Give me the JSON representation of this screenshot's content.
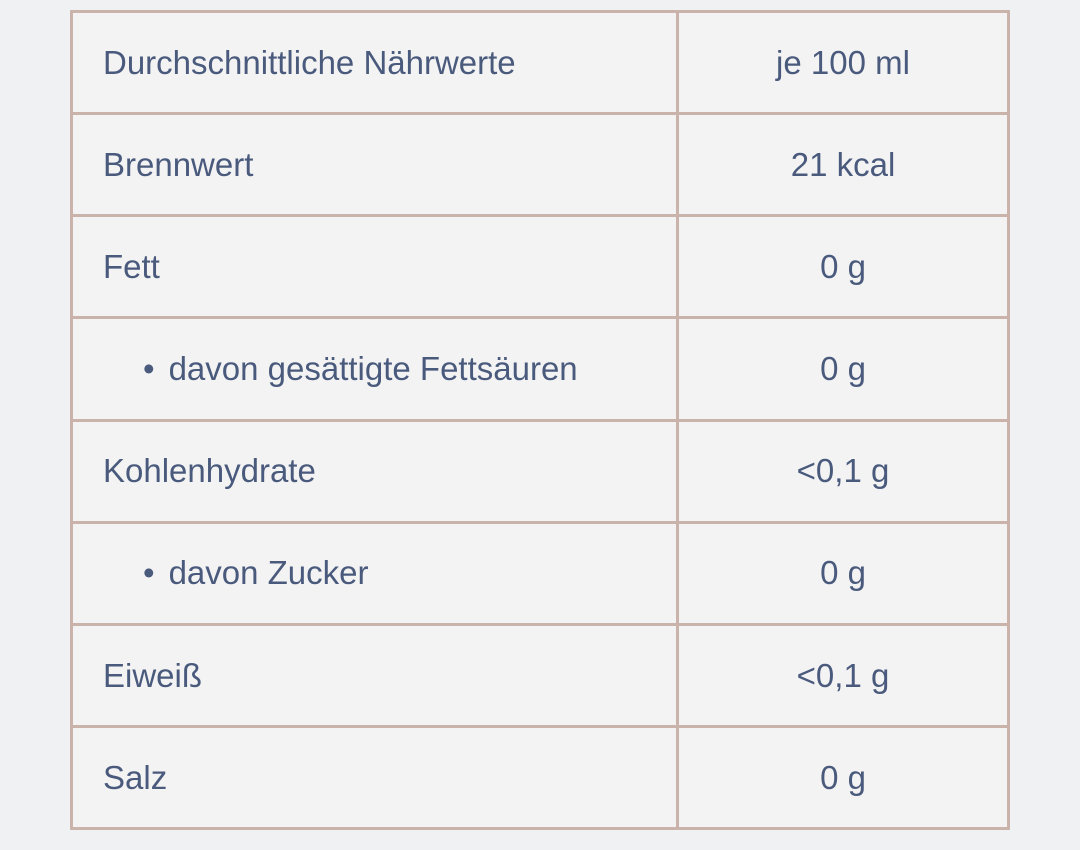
{
  "page": {
    "background_color": "#f0f1f2"
  },
  "table": {
    "border_color": "#c9b3aa",
    "cell_background_color": "#f3f3f4",
    "text_color": "#4a5a7c",
    "bullet_glyph": "•",
    "rows": [
      {
        "label": "Durchschnittliche Nährwerte",
        "value": "je 100 ml",
        "indented": false
      },
      {
        "label": "Brennwert",
        "value": "21 kcal",
        "indented": false
      },
      {
        "label": "Fett",
        "value": "0 g",
        "indented": false
      },
      {
        "label": "davon gesättigte Fettsäuren",
        "value": "0 g",
        "indented": true
      },
      {
        "label": "Kohlenhydrate",
        "value": "<0,1 g",
        "indented": false
      },
      {
        "label": "davon Zucker",
        "value": "0 g",
        "indented": true
      },
      {
        "label": "Eiweiß",
        "value": "<0,1 g",
        "indented": false
      },
      {
        "label": "Salz",
        "value": "0 g",
        "indented": false
      }
    ]
  },
  "chart_data": {
    "type": "table",
    "title": "Durchschnittliche Nährwerte",
    "columns": [
      "Durchschnittliche Nährwerte",
      "je 100 ml"
    ],
    "rows": [
      [
        "Brennwert",
        "21 kcal"
      ],
      [
        "Fett",
        "0 g"
      ],
      [
        "davon gesättigte Fettsäuren",
        "0 g"
      ],
      [
        "Kohlenhydrate",
        "<0,1 g"
      ],
      [
        "davon Zucker",
        "0 g"
      ],
      [
        "Eiweiß",
        "<0,1 g"
      ],
      [
        "Salz",
        "0 g"
      ]
    ],
    "notes": "Nutrition values table per 100 ml; sub-rows 'davon gesättigte Fettsäuren' and 'davon Zucker' are bulleted sub-items of Fett and Kohlenhydrate respectively"
  }
}
